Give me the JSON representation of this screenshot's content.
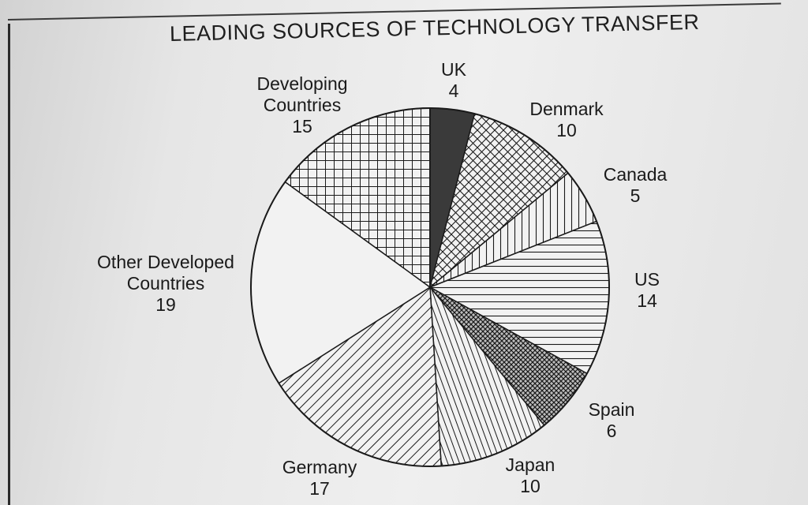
{
  "chart_data": {
    "type": "pie",
    "title": "LEADING SOURCES OF TECHNOLOGY TRANSFER",
    "slices": [
      {
        "label": [
          "UK"
        ],
        "value": 4,
        "pattern": "solid-dark"
      },
      {
        "label": [
          "Denmark"
        ],
        "value": 10,
        "pattern": "crosshatch-diagonal"
      },
      {
        "label": [
          "Canada"
        ],
        "value": 5,
        "pattern": "vertical-lines"
      },
      {
        "label": [
          "US"
        ],
        "value": 14,
        "pattern": "horizontal-lines"
      },
      {
        "label": [
          "Spain"
        ],
        "value": 6,
        "pattern": "dense-crosshatch"
      },
      {
        "label": [
          "Japan"
        ],
        "value": 10,
        "pattern": "vertical-lines-dense"
      },
      {
        "label": [
          "Germany"
        ],
        "value": 17,
        "pattern": "diagonal-lines"
      },
      {
        "label": [
          "Other Developed",
          "Countries"
        ],
        "value": 19,
        "pattern": "blank"
      },
      {
        "label": [
          "Developing",
          "Countries"
        ],
        "value": 15,
        "pattern": "grid"
      }
    ]
  },
  "colors": {
    "ink": "#1a1a1a",
    "slice_fill": "#f2f2f2",
    "uk_fill": "#3a3a3a"
  }
}
